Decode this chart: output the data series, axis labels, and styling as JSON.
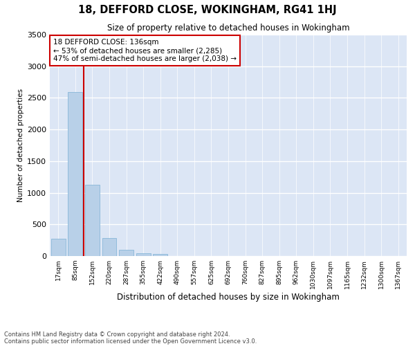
{
  "title": "18, DEFFORD CLOSE, WOKINGHAM, RG41 1HJ",
  "subtitle": "Size of property relative to detached houses in Wokingham",
  "xlabel": "Distribution of detached houses by size in Wokingham",
  "ylabel": "Number of detached properties",
  "bar_color": "#b8d0e8",
  "bar_edge_color": "#7aafd4",
  "background_color": "#dce6f5",
  "grid_color": "#ffffff",
  "annotation_box_color": "#cc0000",
  "vline_color": "#cc0000",
  "categories": [
    "17sqm",
    "85sqm",
    "152sqm",
    "220sqm",
    "287sqm",
    "355sqm",
    "422sqm",
    "490sqm",
    "557sqm",
    "625sqm",
    "692sqm",
    "760sqm",
    "827sqm",
    "895sqm",
    "962sqm",
    "1030sqm",
    "1097sqm",
    "1165sqm",
    "1232sqm",
    "1300sqm",
    "1367sqm"
  ],
  "values": [
    270,
    2590,
    1130,
    280,
    95,
    45,
    30,
    0,
    0,
    0,
    0,
    0,
    0,
    0,
    0,
    0,
    0,
    0,
    0,
    0,
    0
  ],
  "vline_x": 1.5,
  "annotation_text": "18 DEFFORD CLOSE: 136sqm\n← 53% of detached houses are smaller (2,285)\n47% of semi-detached houses are larger (2,038) →",
  "ylim": [
    0,
    3500
  ],
  "yticks": [
    0,
    500,
    1000,
    1500,
    2000,
    2500,
    3000,
    3500
  ],
  "footer_line1": "Contains HM Land Registry data © Crown copyright and database right 2024.",
  "footer_line2": "Contains public sector information licensed under the Open Government Licence v3.0."
}
